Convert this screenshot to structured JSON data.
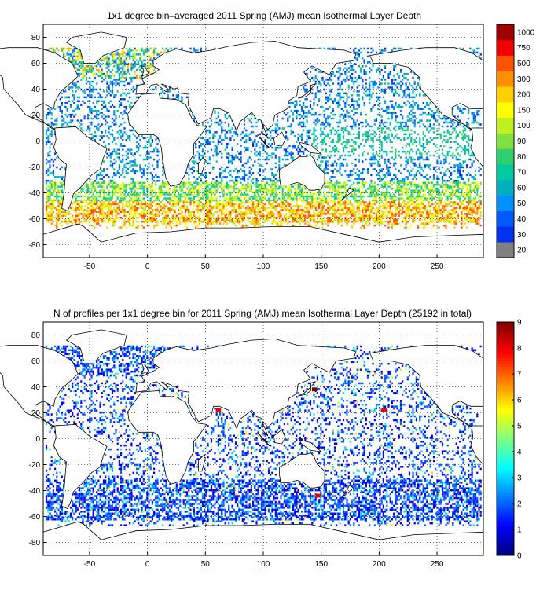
{
  "chart_data": [
    {
      "type": "heatmap",
      "title": "1x1 degree bin–averaged 2011 Spring (AMJ) mean Isothermal Layer Depth",
      "xlim": [
        -90,
        290
      ],
      "ylim": [
        -90,
        90
      ],
      "xticks": [
        -50,
        0,
        50,
        100,
        150,
        200,
        250
      ],
      "yticks": [
        -80,
        -60,
        -40,
        -20,
        0,
        20,
        40,
        60,
        80
      ],
      "grid": "dotted",
      "colorbar": {
        "labels": [
          "20",
          "30",
          "40",
          "50",
          "60",
          "70",
          "80",
          "90",
          "100",
          "150",
          "200",
          "300",
          "500",
          "750",
          "1000"
        ],
        "colors": [
          "#808080",
          "#0030f0",
          "#0058ff",
          "#0090ff",
          "#00b0c0",
          "#00c8a0",
          "#30d070",
          "#80e040",
          "#c0f020",
          "#ffff00",
          "#ffd000",
          "#ff9000",
          "#ff5000",
          "#f00000",
          "#a00000"
        ]
      },
      "bands": [
        {
          "lat": [
            50,
            65
          ],
          "lon": [
            -65,
            20
          ],
          "value": "mixed 30-300"
        },
        {
          "lat": [
            -10,
            15
          ],
          "lon": [
            140,
            280
          ],
          "value": "50-80"
        },
        {
          "lat": [
            -50,
            -30
          ],
          "lon": [
            -60,
            280
          ],
          "value": "60-150"
        },
        {
          "lat": [
            -62,
            -45
          ],
          "lon": [
            -80,
            280
          ],
          "value": "100-500"
        }
      ]
    },
    {
      "type": "heatmap",
      "title": "N of profiles per 1x1 degree bin for 2011 Spring (AMJ) mean Isothermal Layer Depth  (25192 in total)",
      "xlim": [
        -90,
        290
      ],
      "ylim": [
        -90,
        90
      ],
      "xticks": [
        -50,
        0,
        50,
        100,
        150,
        200,
        250
      ],
      "yticks": [
        -80,
        -60,
        -40,
        -20,
        0,
        20,
        40,
        60,
        80
      ],
      "grid": "dotted",
      "colorbar": {
        "min": 0,
        "max": 9,
        "ticks": [
          0,
          1,
          2,
          3,
          4,
          5,
          6,
          7,
          8,
          9
        ],
        "colormap": "jet"
      },
      "hotspots": [
        {
          "lon": 145,
          "lat": 38,
          "value": 9
        },
        {
          "lon": 62,
          "lat": 22,
          "value": 8
        },
        {
          "lon": 205,
          "lat": 22,
          "value": 8
        },
        {
          "lon": 148,
          "lat": -44,
          "value": 8
        }
      ]
    }
  ]
}
